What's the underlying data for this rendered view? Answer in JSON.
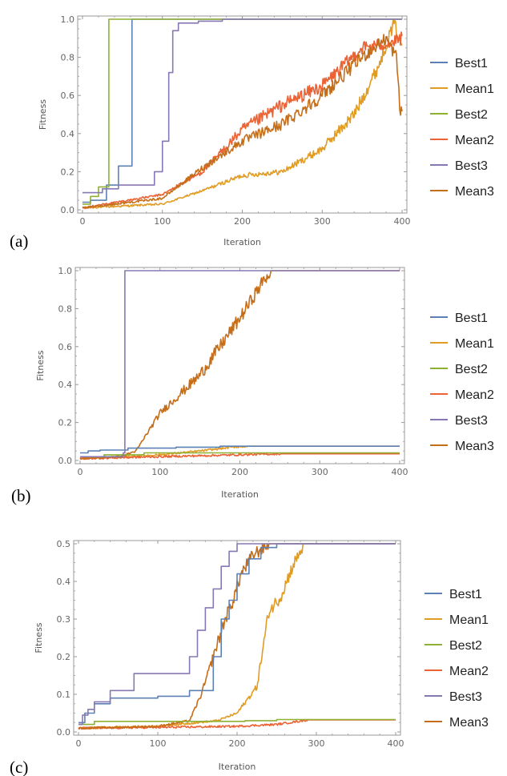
{
  "colors": {
    "Best1": "#5e81b5",
    "Mean1": "#e19c24",
    "Best2": "#8fb032",
    "Mean2": "#eb6235",
    "Best3": "#8778b3",
    "Mean3": "#c56e1a"
  },
  "chart_data": [
    {
      "panel": "(a)",
      "type": "line",
      "xlabel": "Iteration",
      "ylabel": "Fitness",
      "xlim": [
        0,
        400
      ],
      "ylim": [
        0,
        1.0
      ],
      "xticks": [
        "0",
        "100",
        "200",
        "300",
        "400"
      ],
      "yticks": [
        "0.0",
        "0.2",
        "0.4",
        "0.6",
        "0.8",
        "1.0"
      ],
      "legend_position": "right",
      "series": [
        {
          "name": "Best1",
          "style": "step",
          "points": [
            [
              0,
              0.04
            ],
            [
              10,
              0.04
            ],
            [
              10,
              0.05
            ],
            [
              30,
              0.05
            ],
            [
              30,
              0.13
            ],
            [
              45,
              0.13
            ],
            [
              45,
              0.23
            ],
            [
              62,
              0.23
            ],
            [
              62,
              1.0
            ],
            [
              400,
              1.0
            ]
          ]
        },
        {
          "name": "Mean1",
          "style": "noisy",
          "points": [
            [
              0,
              0.01
            ],
            [
              100,
              0.03
            ],
            [
              150,
              0.1
            ],
            [
              200,
              0.18
            ],
            [
              250,
              0.2
            ],
            [
              300,
              0.32
            ],
            [
              340,
              0.5
            ],
            [
              370,
              0.75
            ],
            [
              390,
              0.98
            ],
            [
              400,
              0.85
            ]
          ]
        },
        {
          "name": "Best2",
          "style": "step",
          "points": [
            [
              0,
              0.03
            ],
            [
              10,
              0.03
            ],
            [
              10,
              0.07
            ],
            [
              20,
              0.07
            ],
            [
              20,
              0.12
            ],
            [
              33,
              0.12
            ],
            [
              33,
              1.0
            ],
            [
              400,
              1.0
            ]
          ]
        },
        {
          "name": "Mean2",
          "style": "noisy",
          "points": [
            [
              0,
              0.01
            ],
            [
              100,
              0.08
            ],
            [
              150,
              0.2
            ],
            [
              200,
              0.42
            ],
            [
              250,
              0.55
            ],
            [
              300,
              0.65
            ],
            [
              350,
              0.85
            ],
            [
              390,
              0.88
            ],
            [
              400,
              0.9
            ]
          ]
        },
        {
          "name": "Best3",
          "style": "step",
          "points": [
            [
              0,
              0.09
            ],
            [
              25,
              0.09
            ],
            [
              25,
              0.11
            ],
            [
              45,
              0.11
            ],
            [
              45,
              0.13
            ],
            [
              90,
              0.13
            ],
            [
              90,
              0.2
            ],
            [
              100,
              0.2
            ],
            [
              100,
              0.36
            ],
            [
              108,
              0.36
            ],
            [
              108,
              0.72
            ],
            [
              113,
              0.72
            ],
            [
              113,
              0.94
            ],
            [
              120,
              0.94
            ],
            [
              120,
              0.98
            ],
            [
              145,
              0.98
            ],
            [
              145,
              0.99
            ],
            [
              175,
              0.99
            ],
            [
              175,
              1.0
            ],
            [
              400,
              1.0
            ]
          ]
        },
        {
          "name": "Mean3",
          "style": "noisy",
          "points": [
            [
              0,
              0.01
            ],
            [
              100,
              0.06
            ],
            [
              150,
              0.22
            ],
            [
              200,
              0.36
            ],
            [
              250,
              0.45
            ],
            [
              300,
              0.6
            ],
            [
              350,
              0.8
            ],
            [
              380,
              0.9
            ],
            [
              393,
              0.8
            ],
            [
              398,
              0.5
            ],
            [
              400,
              0.52
            ]
          ]
        }
      ]
    },
    {
      "panel": "(b)",
      "type": "line",
      "xlabel": "Iteration",
      "ylabel": "Fitness",
      "xlim": [
        0,
        400
      ],
      "ylim": [
        0,
        1.0
      ],
      "xticks": [
        "0",
        "100",
        "200",
        "300",
        "400"
      ],
      "yticks": [
        "0.0",
        "0.2",
        "0.4",
        "0.6",
        "0.8",
        "1.0"
      ],
      "legend_position": "right",
      "series": [
        {
          "name": "Best1",
          "style": "step",
          "points": [
            [
              0,
              0.04
            ],
            [
              10,
              0.04
            ],
            [
              10,
              0.05
            ],
            [
              25,
              0.05
            ],
            [
              25,
              0.055
            ],
            [
              60,
              0.055
            ],
            [
              60,
              0.065
            ],
            [
              120,
              0.065
            ],
            [
              120,
              0.07
            ],
            [
              175,
              0.07
            ],
            [
              175,
              0.075
            ],
            [
              400,
              0.075
            ]
          ]
        },
        {
          "name": "Mean1",
          "style": "noisy",
          "points": [
            [
              0,
              0.01
            ],
            [
              50,
              0.02
            ],
            [
              100,
              0.03
            ],
            [
              150,
              0.05
            ],
            [
              190,
              0.07
            ],
            [
              210,
              0.075
            ],
            [
              400,
              0.075
            ]
          ]
        },
        {
          "name": "Best2",
          "style": "step",
          "points": [
            [
              0,
              0.02
            ],
            [
              30,
              0.02
            ],
            [
              30,
              0.03
            ],
            [
              80,
              0.03
            ],
            [
              80,
              0.04
            ],
            [
              400,
              0.04
            ]
          ]
        },
        {
          "name": "Mean2",
          "style": "noisy",
          "points": [
            [
              0,
              0.01
            ],
            [
              100,
              0.02
            ],
            [
              200,
              0.03
            ],
            [
              250,
              0.035
            ],
            [
              400,
              0.035
            ]
          ]
        },
        {
          "name": "Best3",
          "style": "step",
          "points": [
            [
              0,
              0.02
            ],
            [
              54,
              0.02
            ],
            [
              54,
              0.04
            ],
            [
              56,
              0.04
            ],
            [
              56,
              1.0
            ],
            [
              400,
              1.0
            ]
          ]
        },
        {
          "name": "Mean3",
          "style": "noisy",
          "points": [
            [
              0,
              0.01
            ],
            [
              50,
              0.02
            ],
            [
              70,
              0.05
            ],
            [
              100,
              0.25
            ],
            [
              150,
              0.45
            ],
            [
              200,
              0.75
            ],
            [
              230,
              0.95
            ],
            [
              240,
              1.0
            ],
            [
              400,
              1.0
            ]
          ]
        }
      ]
    },
    {
      "panel": "(c)",
      "type": "line",
      "xlabel": "Iteration",
      "ylabel": "Fitness",
      "xlim": [
        0,
        400
      ],
      "ylim": [
        0,
        0.5
      ],
      "xticks": [
        "0",
        "100",
        "200",
        "300",
        "400"
      ],
      "yticks": [
        "0.0",
        "0.1",
        "0.2",
        "0.3",
        "0.4",
        "0.5"
      ],
      "legend_position": "right",
      "series": [
        {
          "name": "Best1",
          "style": "step",
          "points": [
            [
              0,
              0.025
            ],
            [
              8,
              0.025
            ],
            [
              8,
              0.05
            ],
            [
              20,
              0.05
            ],
            [
              20,
              0.075
            ],
            [
              40,
              0.075
            ],
            [
              40,
              0.09
            ],
            [
              100,
              0.09
            ],
            [
              100,
              0.095
            ],
            [
              140,
              0.095
            ],
            [
              140,
              0.11
            ],
            [
              170,
              0.11
            ],
            [
              170,
              0.2
            ],
            [
              180,
              0.2
            ],
            [
              180,
              0.3
            ],
            [
              190,
              0.3
            ],
            [
              190,
              0.35
            ],
            [
              200,
              0.35
            ],
            [
              200,
              0.42
            ],
            [
              215,
              0.42
            ],
            [
              215,
              0.46
            ],
            [
              230,
              0.46
            ],
            [
              230,
              0.49
            ],
            [
              250,
              0.49
            ],
            [
              250,
              0.5
            ],
            [
              400,
              0.5
            ]
          ]
        },
        {
          "name": "Mean1",
          "style": "noisy",
          "points": [
            [
              0,
              0.01
            ],
            [
              100,
              0.015
            ],
            [
              175,
              0.03
            ],
            [
              200,
              0.05
            ],
            [
              225,
              0.12
            ],
            [
              240,
              0.32
            ],
            [
              255,
              0.36
            ],
            [
              270,
              0.44
            ],
            [
              285,
              0.5
            ],
            [
              400,
              0.5
            ]
          ]
        },
        {
          "name": "Best2",
          "style": "step",
          "points": [
            [
              0,
              0.02
            ],
            [
              20,
              0.02
            ],
            [
              20,
              0.028
            ],
            [
              210,
              0.028
            ],
            [
              210,
              0.03
            ],
            [
              250,
              0.03
            ],
            [
              250,
              0.033
            ],
            [
              400,
              0.033
            ]
          ]
        },
        {
          "name": "Mean2",
          "style": "noisy",
          "points": [
            [
              0,
              0.01
            ],
            [
              100,
              0.012
            ],
            [
              200,
              0.015
            ],
            [
              250,
              0.02
            ],
            [
              290,
              0.032
            ],
            [
              400,
              0.032
            ]
          ]
        },
        {
          "name": "Best3",
          "style": "step",
          "points": [
            [
              0,
              0.02
            ],
            [
              5,
              0.02
            ],
            [
              5,
              0.045
            ],
            [
              12,
              0.045
            ],
            [
              12,
              0.06
            ],
            [
              20,
              0.06
            ],
            [
              20,
              0.08
            ],
            [
              40,
              0.08
            ],
            [
              40,
              0.11
            ],
            [
              70,
              0.11
            ],
            [
              70,
              0.155
            ],
            [
              140,
              0.155
            ],
            [
              140,
              0.2
            ],
            [
              150,
              0.2
            ],
            [
              150,
              0.27
            ],
            [
              160,
              0.27
            ],
            [
              160,
              0.33
            ],
            [
              170,
              0.33
            ],
            [
              170,
              0.38
            ],
            [
              180,
              0.38
            ],
            [
              180,
              0.44
            ],
            [
              190,
              0.44
            ],
            [
              190,
              0.48
            ],
            [
              200,
              0.48
            ],
            [
              200,
              0.5
            ],
            [
              400,
              0.5
            ]
          ]
        },
        {
          "name": "Mean3",
          "style": "noisy",
          "points": [
            [
              0,
              0.01
            ],
            [
              100,
              0.015
            ],
            [
              140,
              0.03
            ],
            [
              155,
              0.1
            ],
            [
              170,
              0.2
            ],
            [
              185,
              0.3
            ],
            [
              195,
              0.35
            ],
            [
              205,
              0.42
            ],
            [
              220,
              0.47
            ],
            [
              240,
              0.5
            ],
            [
              400,
              0.5
            ]
          ]
        }
      ]
    }
  ]
}
